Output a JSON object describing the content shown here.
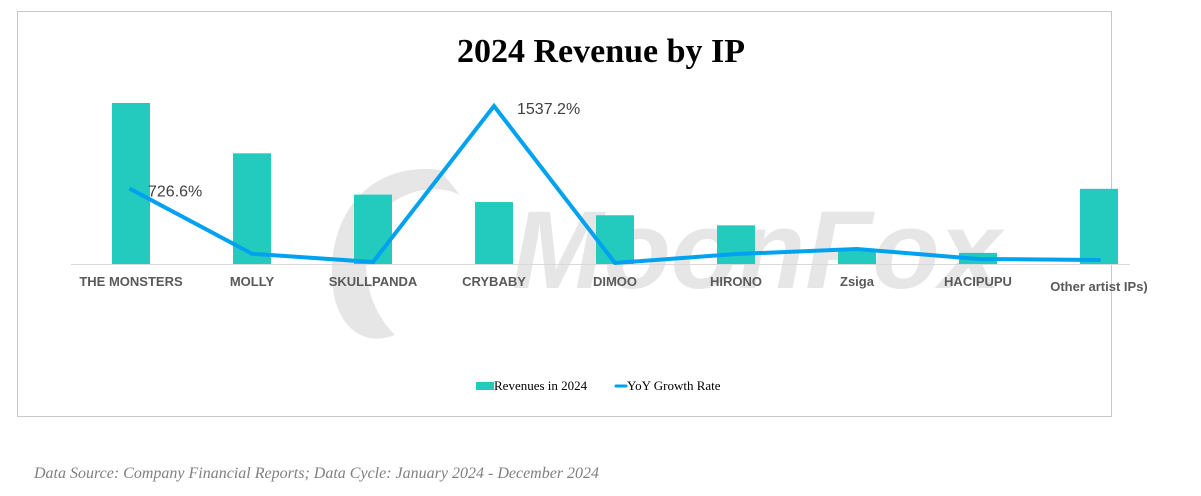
{
  "chart_data": {
    "type": "bar",
    "title": "2024 Revenue by IP",
    "xlabel": "",
    "ylabel": "",
    "categories": [
      "THE MONSTERS",
      "MOLLY",
      "SKULLPANDA",
      "CRYBABY",
      "DIMOO",
      "HIRONO",
      "Zsiga",
      "HACIPUPU",
      "Other artist IPs)"
    ],
    "series": [
      {
        "name": "Revenues in 2024",
        "type": "bar",
        "color": "#22CBBD",
        "values": [
          30.4,
          20.9,
          13.1,
          11.7,
          9.2,
          7.3,
          2.6,
          2.1,
          14.2
        ]
      },
      {
        "name": "YoY Growth Rate",
        "type": "line",
        "color": "#00A2F0",
        "unit": "%",
        "values": [
          726.6,
          100,
          19,
          1537.2,
          10,
          97,
          146,
          49,
          39
        ],
        "data_labels": [
          "726.6%",
          "",
          "",
          "1537.2%",
          "",
          "",
          "",
          "",
          ""
        ]
      }
    ],
    "bar_ylim": [
      0,
      30.4
    ],
    "line_ylim": [
      0,
      1537.2
    ],
    "axis_labels_visible": false,
    "grid": false,
    "legend_position": "bottom-center",
    "watermark": "MoonFox"
  },
  "legend": [
    {
      "label": "Revenues in 2024",
      "marker": "square",
      "color": "#22CBBD"
    },
    {
      "label": "YoY Growth Rate",
      "marker": "line",
      "color": "#00A2F0"
    }
  ],
  "footnote": "Data Source: Company Financial Reports; Data Cycle: January 2024 - December 2024"
}
